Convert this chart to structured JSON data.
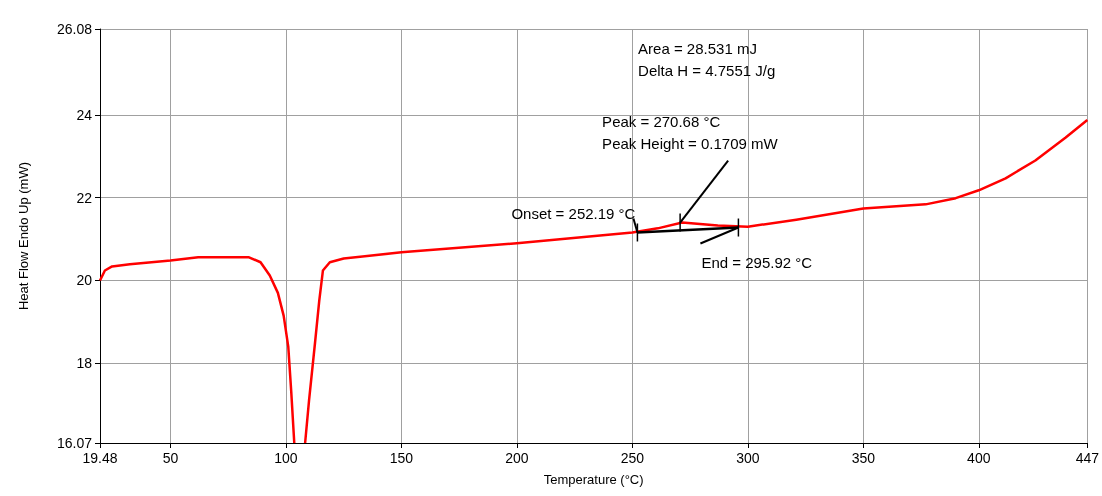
{
  "chart_data": {
    "type": "line",
    "xlabel": "Temperature (°C)",
    "ylabel": "Heat Flow Endo Up (mW)",
    "xlim": [
      19.48,
      447
    ],
    "xticks": [
      19.48,
      50,
      100,
      150,
      200,
      250,
      300,
      350,
      400,
      447
    ],
    "ylim": [
      16.07,
      26.08
    ],
    "yticks": [
      16.07,
      18,
      20,
      22,
      24,
      26.08
    ],
    "grid": true,
    "marker": "none",
    "line_style": "solid",
    "series": [
      {
        "color": "#ff0000",
        "x": [
          19.48,
          21.6,
          24.7,
          32.4,
          50,
          62,
          84,
          89,
          93,
          96.5,
          99,
          101,
          102.3,
          103.6,
          106,
          108.3,
          110,
          112.6,
          114.4,
          116,
          119,
          125,
          150,
          200,
          250,
          261,
          271.6,
          287,
          300,
          321,
          350,
          377,
          390,
          400,
          411.6,
          424.5,
          437.5,
          447
        ],
        "values": [
          20.0,
          20.24,
          20.34,
          20.39,
          20.48,
          20.56,
          20.56,
          20.44,
          20.12,
          19.7,
          19.15,
          18.4,
          17.3,
          16.07,
          null,
          16.07,
          17.1,
          18.5,
          19.5,
          20.24,
          20.44,
          20.53,
          20.68,
          20.9,
          21.16,
          21.26,
          21.4,
          21.33,
          21.3,
          21.47,
          21.74,
          21.84,
          21.99,
          22.18,
          22.47,
          22.9,
          23.45,
          23.88
        ]
      },
      {
        "color": "#000000",
        "x": [
          252.19,
          295.92
        ],
        "values": [
          21.16,
          21.28
        ]
      }
    ],
    "annotations": [
      "Area = 28.531 mJ",
      "Delta H = 4.7551 J/g",
      {
        "text": "Peak = 270.68 °C\nPeak Height = 0.1709 mW",
        "x": 270.68,
        "y": 21.4
      },
      {
        "text": "Onset = 252.19 °C",
        "x": 252.19,
        "y": 21.16
      },
      {
        "text": "End = 295.92 °C",
        "x": 295.92,
        "y": 21.28
      }
    ]
  }
}
